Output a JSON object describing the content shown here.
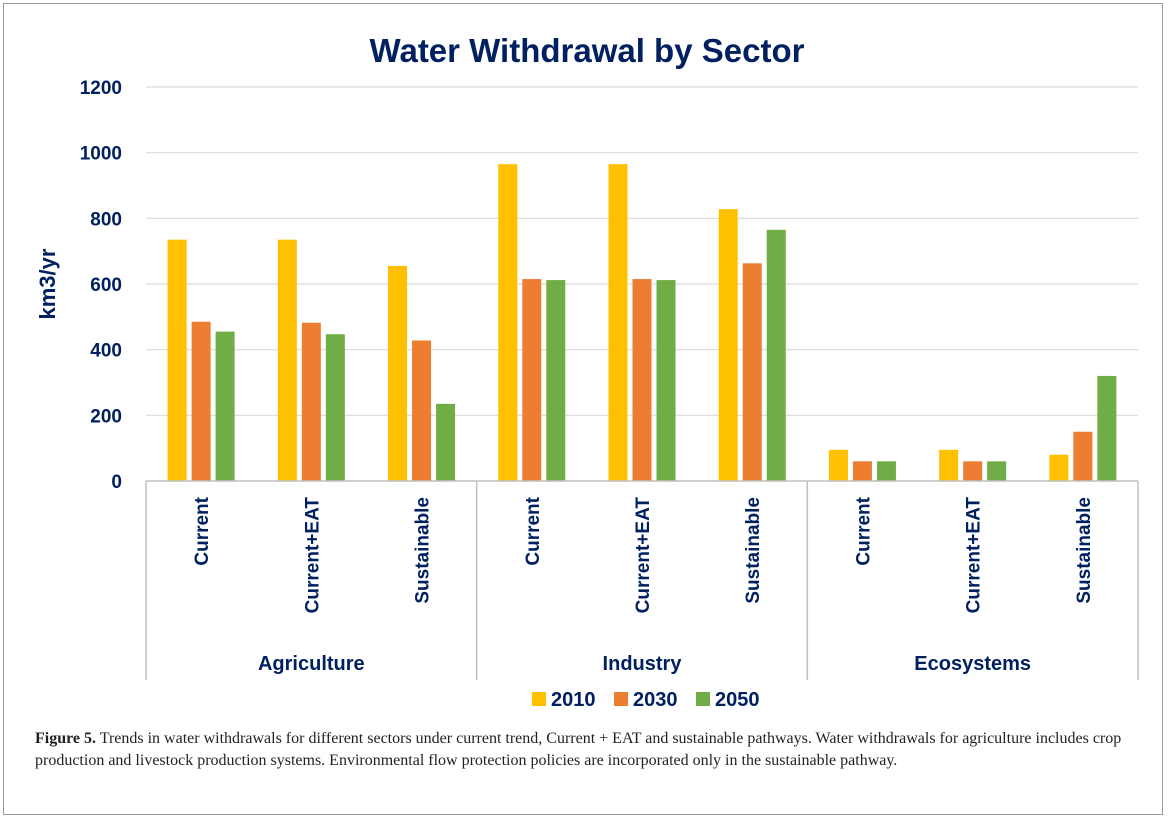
{
  "chart_data": {
    "type": "bar",
    "title": "Water Withdrawal by Sector",
    "ylabel": "km3/yr",
    "xlabel": "",
    "ylim": [
      0,
      1200
    ],
    "yticks": [
      0,
      200,
      400,
      600,
      800,
      1000,
      1200
    ],
    "grid": true,
    "legend_position": "bottom",
    "groups": [
      {
        "name": "Agriculture",
        "categories": [
          "Current",
          "Current+EAT",
          "Sustainable"
        ]
      },
      {
        "name": "Industry",
        "categories": [
          "Current",
          "Current+EAT",
          "Sustainable"
        ]
      },
      {
        "name": "Ecosystems",
        "categories": [
          "Current",
          "Current+EAT",
          "Sustainable"
        ]
      }
    ],
    "series": [
      {
        "name": "2010",
        "color": "#FFC000",
        "values": [
          735,
          735,
          655,
          965,
          965,
          828,
          95,
          95,
          80
        ]
      },
      {
        "name": "2030",
        "color": "#ED7D31",
        "values": [
          485,
          482,
          428,
          615,
          615,
          663,
          60,
          60,
          150
        ]
      },
      {
        "name": "2050",
        "color": "#70AD47",
        "values": [
          455,
          447,
          235,
          612,
          612,
          765,
          60,
          60,
          320
        ]
      }
    ]
  },
  "caption": {
    "label": "Figure 5.",
    "text": " Trends in water withdrawals for different sectors under current trend, Current + EAT and sustainable pathways. Water withdrawals for agriculture includes crop production and livestock production systems. Environmental flow protection policies are incorporated only in the sustainable pathway."
  },
  "colors": {
    "title": "#002060",
    "grid": "#d9d9d9",
    "axis": "#bfbfbf"
  }
}
